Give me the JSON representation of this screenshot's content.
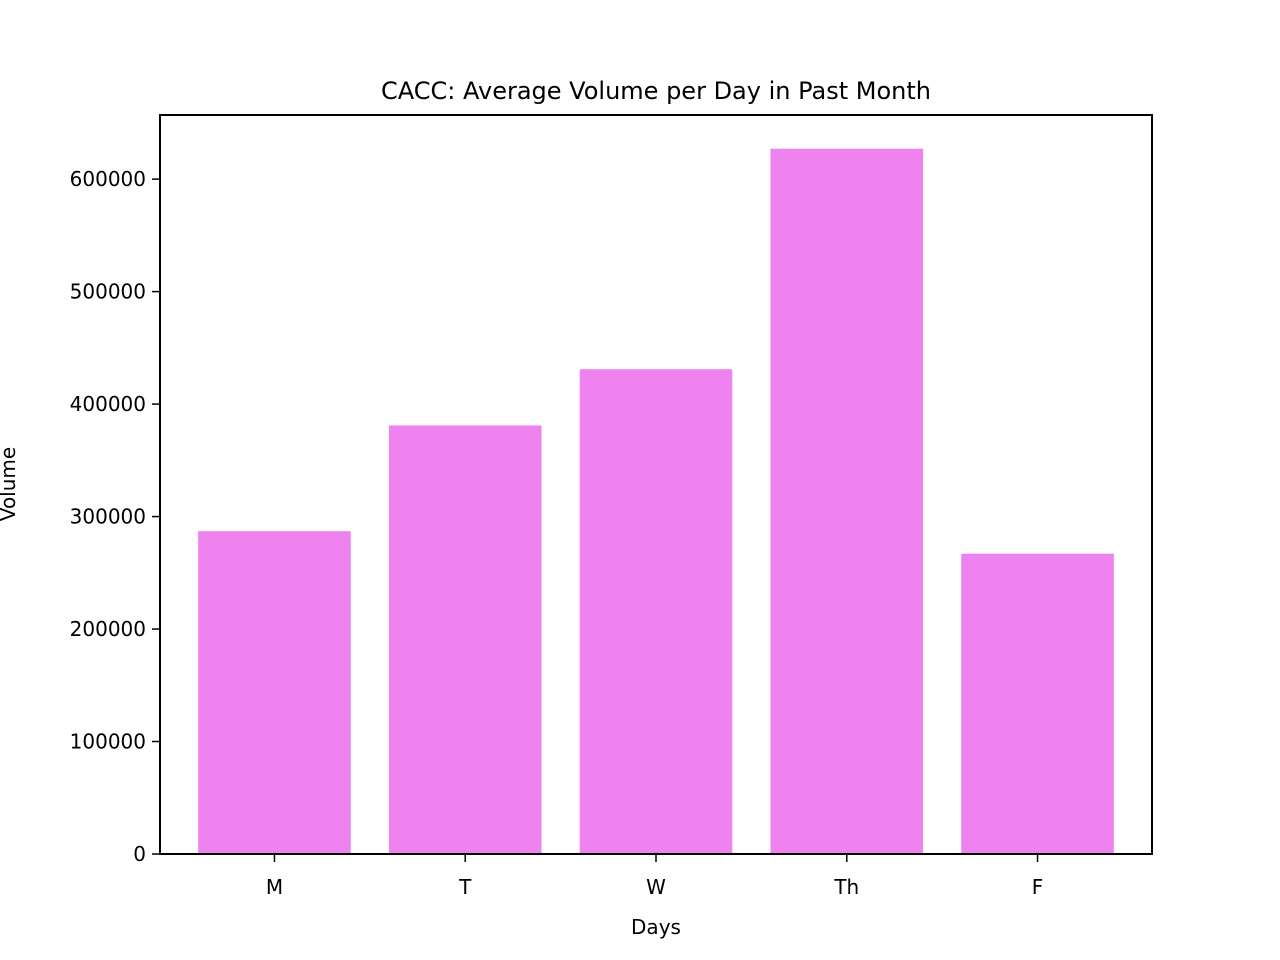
{
  "chart_data": {
    "type": "bar",
    "title": "CACC: Average Volume per Day in Past Month",
    "xlabel": "Days",
    "ylabel": "Volume",
    "categories": [
      "M",
      "T",
      "W",
      "Th",
      "F"
    ],
    "values": [
      287000,
      381000,
      431000,
      627000,
      267000
    ],
    "ylim": [
      0,
      657000
    ],
    "yticks": [
      0,
      100000,
      200000,
      300000,
      400000,
      500000,
      600000
    ],
    "ytick_labels": [
      "0",
      "100000",
      "200000",
      "300000",
      "400000",
      "500000",
      "600000"
    ],
    "bar_color": "#ee82ee",
    "grid": false,
    "legend": "none"
  }
}
